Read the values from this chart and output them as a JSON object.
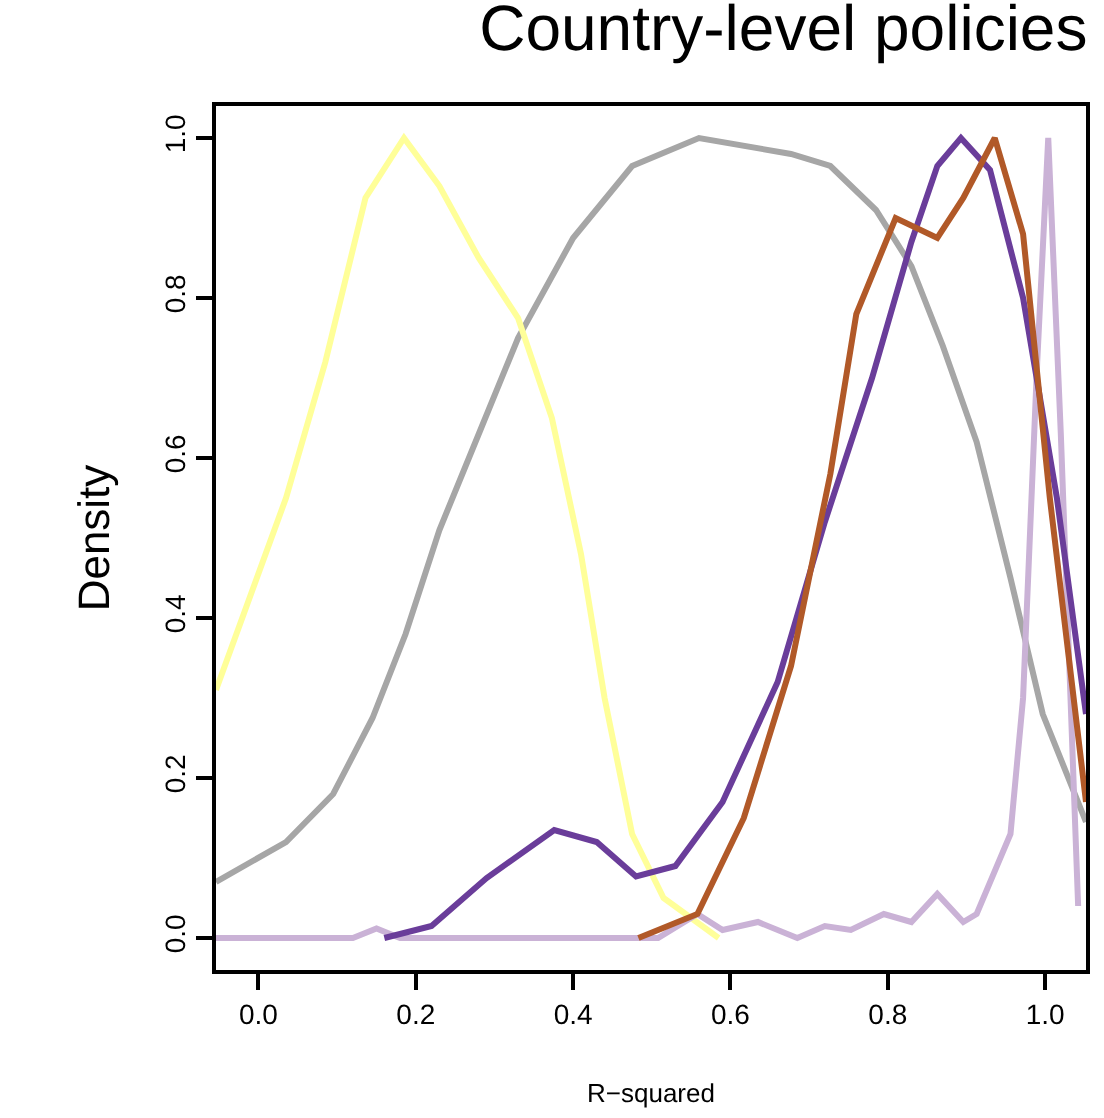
{
  "chart_data": {
    "type": "line",
    "title": "Country-level policies",
    "xlabel": "R−squared",
    "ylabel": "Density",
    "xlim": [
      -0.054,
      1.052
    ],
    "ylim": [
      -0.04,
      1.04
    ],
    "xticks": [
      {
        "value": 0,
        "label": "0.0"
      },
      {
        "value": 0.2,
        "label": "0.2"
      },
      {
        "value": 0.4,
        "label": "0.4"
      },
      {
        "value": 0.6,
        "label": "0.6"
      },
      {
        "value": 0.8,
        "label": "0.8"
      },
      {
        "value": 1,
        "label": "1.0"
      }
    ],
    "yticks": [
      {
        "value": 0,
        "label": "0.0"
      },
      {
        "value": 0.2,
        "label": "0.2"
      },
      {
        "value": 0.4,
        "label": "0.4"
      },
      {
        "value": 0.6,
        "label": "0.6"
      },
      {
        "value": 0.8,
        "label": "0.8"
      },
      {
        "value": 1,
        "label": "1.0"
      }
    ],
    "marker": "none",
    "line_style": "solid",
    "series": [
      {
        "color": "#a6a6a6",
        "x": [
          -0.054,
          0.035,
          0.095,
          0.145,
          0.187,
          0.23,
          0.28,
          0.33,
          0.4,
          0.475,
          0.56,
          0.677,
          0.727,
          0.785,
          0.83,
          0.87,
          0.913,
          0.956,
          0.997,
          1.052
        ],
        "values": [
          0.07,
          0.12,
          0.18,
          0.275,
          0.38,
          0.51,
          0.63,
          0.75,
          0.875,
          0.965,
          1.0,
          0.98,
          0.965,
          0.91,
          0.84,
          0.74,
          0.62,
          0.45,
          0.28,
          0.145
        ]
      },
      {
        "color": "#ffff99",
        "x": [
          -0.054,
          0.035,
          0.085,
          0.136,
          0.185,
          0.23,
          0.28,
          0.33,
          0.373,
          0.41,
          0.44,
          0.475,
          0.515,
          0.585
        ],
        "values": [
          0.31,
          0.55,
          0.72,
          0.925,
          1.0,
          0.94,
          0.85,
          0.775,
          0.65,
          0.48,
          0.3,
          0.13,
          0.05,
          0.0
        ]
      },
      {
        "color": "#cab2d6",
        "x": [
          -0.054,
          0.12,
          0.15,
          0.18,
          0.508,
          0.558,
          0.59,
          0.635,
          0.685,
          0.72,
          0.753,
          0.795,
          0.83,
          0.863,
          0.896,
          0.913,
          0.956,
          0.972,
          0.99,
          1.004,
          1.02,
          1.042
        ],
        "values": [
          0.0,
          0.0,
          0.012,
          0.0,
          0.0,
          0.03,
          0.01,
          0.02,
          0.0,
          0.015,
          0.01,
          0.03,
          0.02,
          0.055,
          0.02,
          0.03,
          0.13,
          0.3,
          0.72,
          1.0,
          0.63,
          0.04
        ]
      },
      {
        "color": "#6a3d9a",
        "x": [
          0.16,
          0.22,
          0.29,
          0.376,
          0.43,
          0.48,
          0.53,
          0.59,
          0.66,
          0.72,
          0.78,
          0.83,
          0.863,
          0.893,
          0.93,
          0.972,
          1.015,
          1.052
        ],
        "values": [
          0.0,
          0.015,
          0.075,
          0.135,
          0.12,
          0.077,
          0.09,
          0.17,
          0.32,
          0.52,
          0.7,
          0.87,
          0.965,
          1.0,
          0.96,
          0.8,
          0.55,
          0.28
        ]
      },
      {
        "color": "#b15928",
        "x": [
          0.483,
          0.558,
          0.617,
          0.677,
          0.727,
          0.76,
          0.81,
          0.863,
          0.896,
          0.936,
          0.972,
          1.006,
          1.052
        ],
        "values": [
          0.0,
          0.03,
          0.15,
          0.34,
          0.58,
          0.78,
          0.9,
          0.875,
          0.925,
          1.0,
          0.88,
          0.55,
          0.17
        ]
      }
    ]
  }
}
